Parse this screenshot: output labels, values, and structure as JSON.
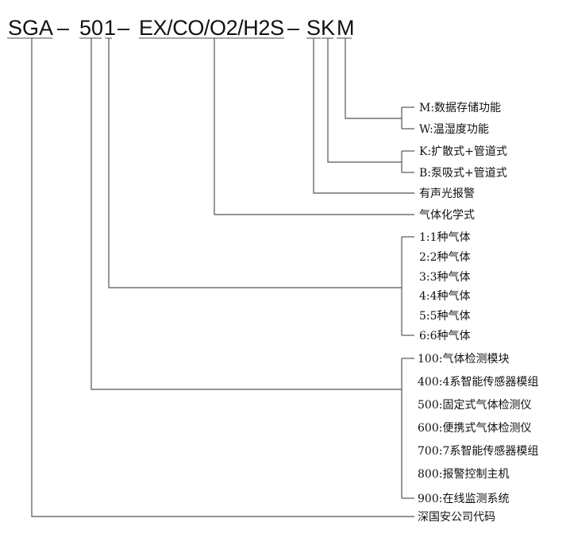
{
  "model_code": {
    "prefix": "SGA",
    "series": "50",
    "gas_count": "1",
    "gases": "EX/CO/O2/H2S",
    "alarm": "S",
    "sampling": "K",
    "function": "M",
    "separator": "–"
  },
  "labels": {
    "function_options": [
      "M:数据存储功能",
      "W:温湿度功能"
    ],
    "sampling_options": [
      "K:扩散式+管道式",
      "B:泵吸式+管道式"
    ],
    "alarm": "有声光报警",
    "gas_formula": "气体化学式",
    "gas_count_options": [
      "1:1种气体",
      "2:2种气体",
      "3:3种气体",
      "4:4种气体",
      "5:5种气体",
      "6:6种气体"
    ],
    "series_options": [
      "100:气体检测模块",
      "400:4系智能传感器模组",
      "500:固定式气体检测仪",
      "600:便携式气体检测仪",
      "700:7系智能传感器模组",
      "800:报警控制主机",
      "900:在线监测系统"
    ],
    "company_code": "深国安公司代码"
  },
  "colors": {
    "line": "#555555",
    "text": "#111111"
  }
}
